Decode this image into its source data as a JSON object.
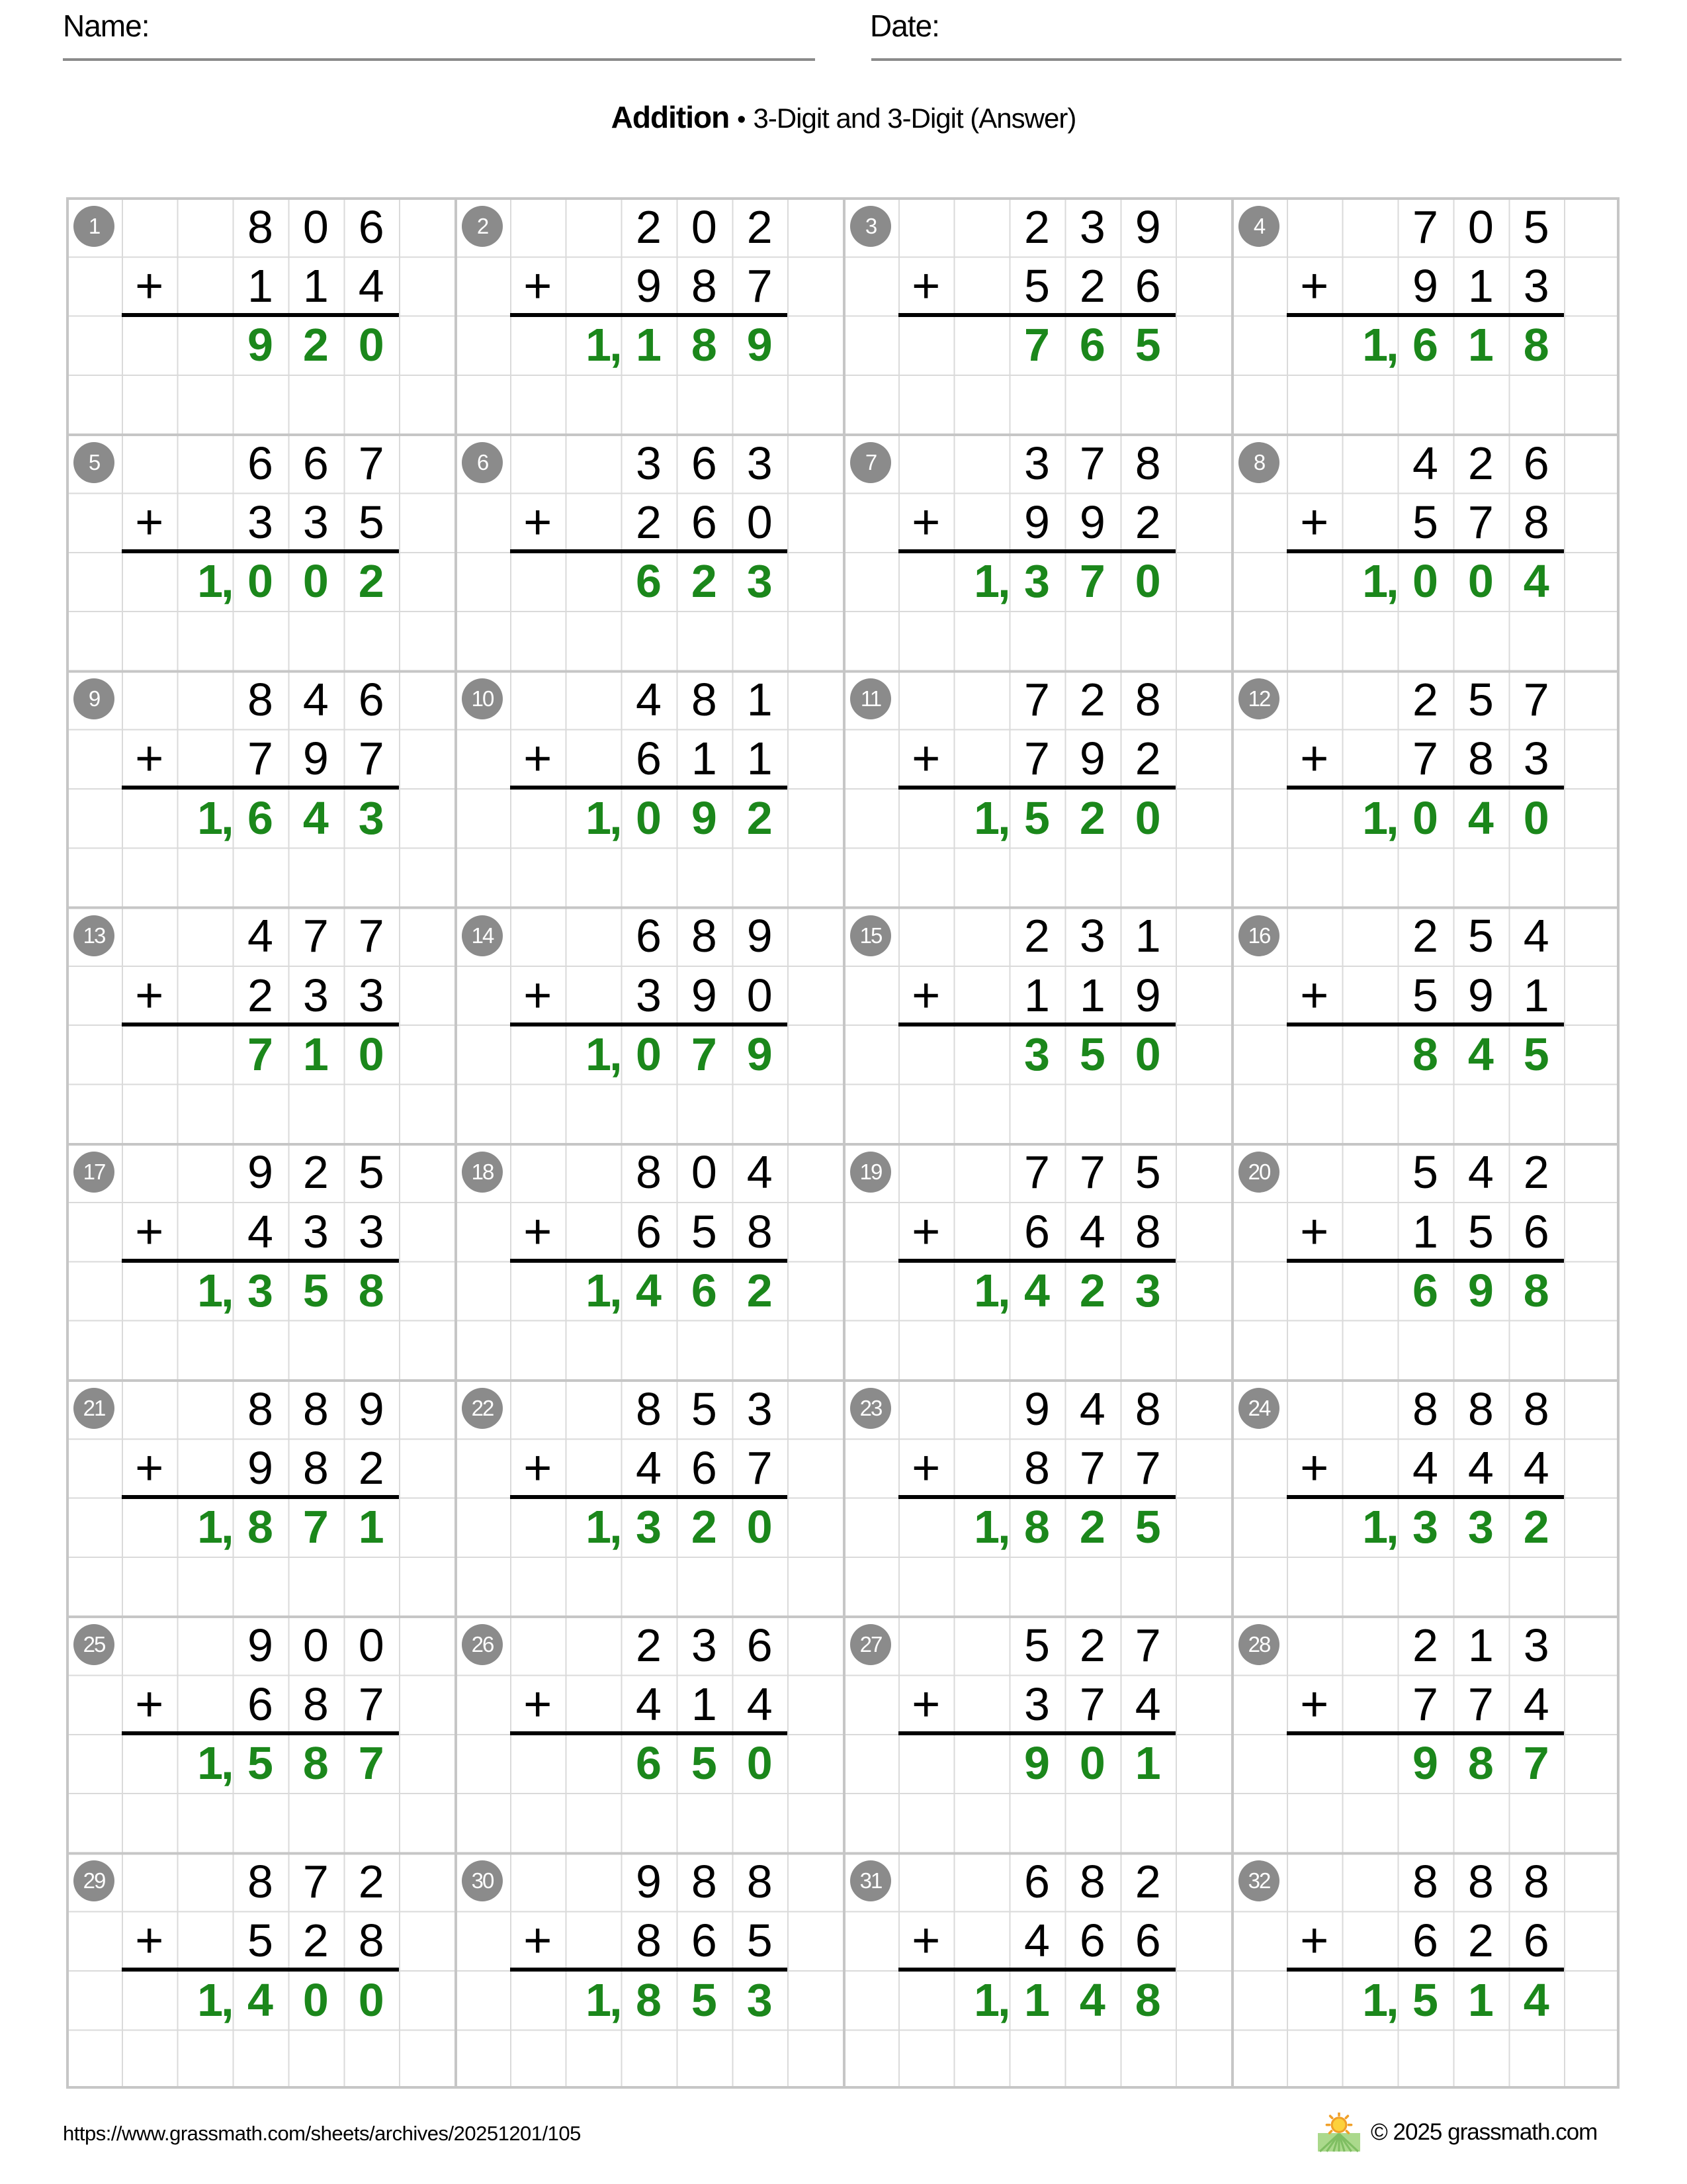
{
  "header": {
    "name_label": "Name:",
    "date_label": "Date:",
    "title": "Addition",
    "title_separator": "•",
    "subtitle": "3-Digit and 3-Digit (Answer)"
  },
  "worksheet": {
    "plus_symbol": "+",
    "problems": [
      {
        "num": "1",
        "a": "806",
        "b": "114",
        "sum": "920"
      },
      {
        "num": "2",
        "a": "202",
        "b": "987",
        "sum": "1,189"
      },
      {
        "num": "3",
        "a": "239",
        "b": "526",
        "sum": "765"
      },
      {
        "num": "4",
        "a": "705",
        "b": "913",
        "sum": "1,618"
      },
      {
        "num": "5",
        "a": "667",
        "b": "335",
        "sum": "1,002"
      },
      {
        "num": "6",
        "a": "363",
        "b": "260",
        "sum": "623"
      },
      {
        "num": "7",
        "a": "378",
        "b": "992",
        "sum": "1,370"
      },
      {
        "num": "8",
        "a": "426",
        "b": "578",
        "sum": "1,004"
      },
      {
        "num": "9",
        "a": "846",
        "b": "797",
        "sum": "1,643"
      },
      {
        "num": "10",
        "a": "481",
        "b": "611",
        "sum": "1,092"
      },
      {
        "num": "11",
        "a": "728",
        "b": "792",
        "sum": "1,520"
      },
      {
        "num": "12",
        "a": "257",
        "b": "783",
        "sum": "1,040"
      },
      {
        "num": "13",
        "a": "477",
        "b": "233",
        "sum": "710"
      },
      {
        "num": "14",
        "a": "689",
        "b": "390",
        "sum": "1,079"
      },
      {
        "num": "15",
        "a": "231",
        "b": "119",
        "sum": "350"
      },
      {
        "num": "16",
        "a": "254",
        "b": "591",
        "sum": "845"
      },
      {
        "num": "17",
        "a": "925",
        "b": "433",
        "sum": "1,358"
      },
      {
        "num": "18",
        "a": "804",
        "b": "658",
        "sum": "1,462"
      },
      {
        "num": "19",
        "a": "775",
        "b": "648",
        "sum": "1,423"
      },
      {
        "num": "20",
        "a": "542",
        "b": "156",
        "sum": "698"
      },
      {
        "num": "21",
        "a": "889",
        "b": "982",
        "sum": "1,871"
      },
      {
        "num": "22",
        "a": "853",
        "b": "467",
        "sum": "1,320"
      },
      {
        "num": "23",
        "a": "948",
        "b": "877",
        "sum": "1,825"
      },
      {
        "num": "24",
        "a": "888",
        "b": "444",
        "sum": "1,332"
      },
      {
        "num": "25",
        "a": "900",
        "b": "687",
        "sum": "1,587"
      },
      {
        "num": "26",
        "a": "236",
        "b": "414",
        "sum": "650"
      },
      {
        "num": "27",
        "a": "527",
        "b": "374",
        "sum": "901"
      },
      {
        "num": "28",
        "a": "213",
        "b": "774",
        "sum": "987"
      },
      {
        "num": "29",
        "a": "872",
        "b": "528",
        "sum": "1,400"
      },
      {
        "num": "30",
        "a": "988",
        "b": "865",
        "sum": "1,853"
      },
      {
        "num": "31",
        "a": "682",
        "b": "466",
        "sum": "1,148"
      },
      {
        "num": "32",
        "a": "888",
        "b": "626",
        "sum": "1,514"
      }
    ]
  },
  "footer": {
    "url": "https://www.grassmath.com/sheets/archives/20251201/105",
    "copyright": "© 2025 grassmath.com",
    "logo": "grassmath-sun-over-field-logo"
  },
  "colors": {
    "answer_green": "#1b871b",
    "badge_gray": "#8b8b8b",
    "grid_line_thin": "#dadada",
    "grid_line_thick": "#c6c6c6",
    "header_line_gray": "#8a8a8a",
    "sum_line_black": "#000000"
  }
}
